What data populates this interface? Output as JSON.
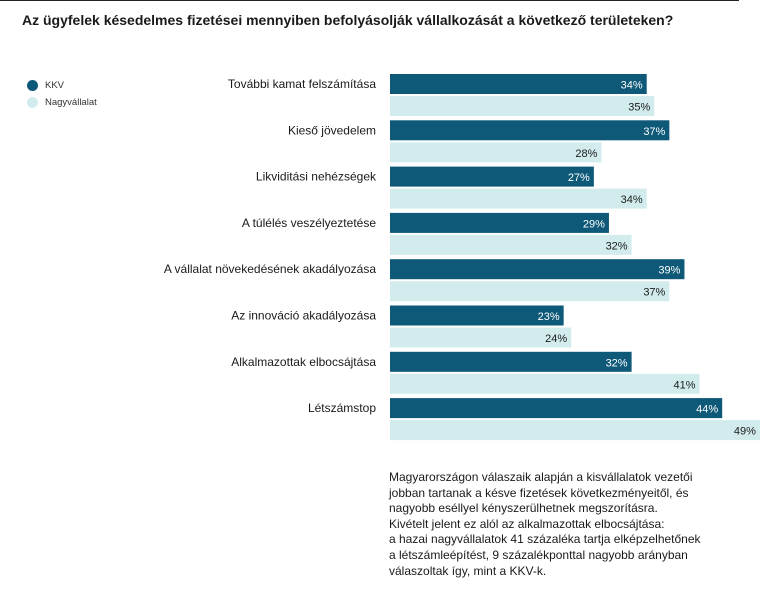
{
  "title": "Az ügyfelek késedelmes fizetései mennyiben befolyásolják vállalkozását a következő területeken?",
  "legend": [
    {
      "label": "KKV",
      "color": "#0e5878"
    },
    {
      "label": "Nagyvállalat",
      "color": "#d2ecee"
    }
  ],
  "chart_data": {
    "type": "bar",
    "orientation": "horizontal",
    "categories": [
      "További kamat felszámítása",
      "Kieső jövedelem",
      "Likviditási nehézségek",
      "A túlélés veszélyeztetése",
      "A vállalat növekedésének akadályozása",
      "Az innováció akadályozása",
      "Alkalmazottak elbocsájtása",
      "Létszámstop"
    ],
    "series": [
      {
        "name": "KKV",
        "color": "#0e5878",
        "values": [
          34,
          37,
          27,
          29,
          39,
          23,
          32,
          44
        ],
        "labels": [
          "34%",
          "37%",
          "27%",
          "29%",
          "39%",
          "23%",
          "32%",
          "44%"
        ]
      },
      {
        "name": "Nagyvállalat",
        "color": "#d2ecee",
        "values": [
          35,
          28,
          34,
          32,
          37,
          24,
          41,
          49
        ],
        "labels": [
          "35%",
          "28%",
          "34%",
          "32%",
          "37%",
          "24%",
          "41%",
          "49%"
        ]
      }
    ],
    "unit": "%",
    "legend_position": "top-left",
    "grid": false
  },
  "note": [
    "Magyarországon válaszaik alapján a kisvállalatok vezetői",
    "jobban tartanak a késve fizetések következményeitől, és",
    "nagyobb eséllyel kényszerülhetnek megszorításra.",
    "Kivételt jelent ez alól az alkalmazottak elbocsájtása:",
    "a hazai nagyvállalatok 41 százaléka tartja elképzelhetőnek",
    "a létszámleépítést, 9 százalékponttal nagyobb arányban",
    "válaszoltak így, mint a KKV-k."
  ]
}
